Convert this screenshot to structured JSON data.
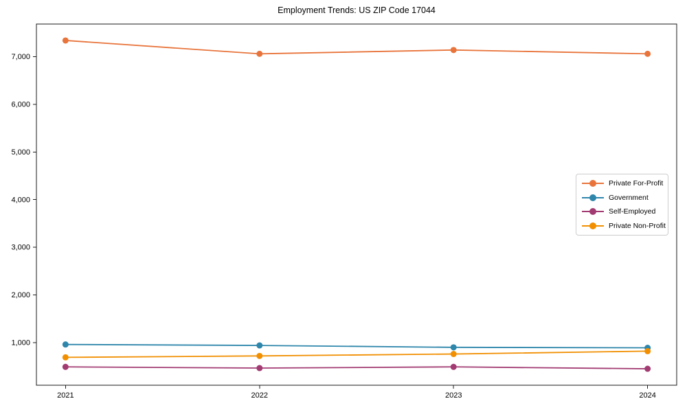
{
  "title": "Employment Trends: US ZIP Code 17044",
  "chart_data": {
    "type": "line",
    "title": "Employment Trends: US ZIP Code 17044",
    "xlabel": "",
    "ylabel": "",
    "x": [
      2021,
      2022,
      2023,
      2024
    ],
    "series": [
      {
        "name": "Private For-Profit",
        "color": "#E8743B",
        "values": [
          7340,
          7060,
          7140,
          7060
        ]
      },
      {
        "name": "Government",
        "color": "#2E86AB",
        "values": [
          960,
          940,
          900,
          890
        ]
      },
      {
        "name": "Self-Employed",
        "color": "#A23B72",
        "values": [
          490,
          465,
          490,
          450
        ]
      },
      {
        "name": "Private Non-Profit",
        "color": "#F18F01",
        "values": [
          690,
          720,
          760,
          820
        ]
      }
    ],
    "xticks": [
      2021,
      2022,
      2023,
      2024
    ],
    "yticks": [
      1000,
      2000,
      3000,
      4000,
      5000,
      6000,
      7000
    ],
    "xlim": [
      2020.85,
      2024.15
    ],
    "ylim": [
      105,
      7685
    ],
    "grid": false,
    "legend_position": "right",
    "axis_color": "#1a1a1a",
    "marker_radius": 4.5,
    "line_width": 1.8
  }
}
